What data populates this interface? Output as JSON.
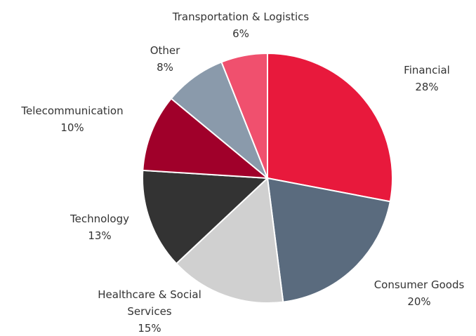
{
  "chart_data": {
    "type": "pie",
    "categories": [
      "Financial",
      "Consumer Goods",
      "Healthcare & Social Services",
      "Technology",
      "Telecommunication",
      "Other",
      "Transportation & Logistics"
    ],
    "values": [
      28,
      20,
      15,
      13,
      10,
      8,
      6
    ],
    "value_labels": [
      "28%",
      "20%",
      "15%",
      "13%",
      "10%",
      "8%",
      "6%"
    ],
    "colors": [
      "#e8193c",
      "#5a6b7e",
      "#d0d0d0",
      "#333333",
      "#a0002a",
      "#8a9aab",
      "#f0506e"
    ]
  }
}
